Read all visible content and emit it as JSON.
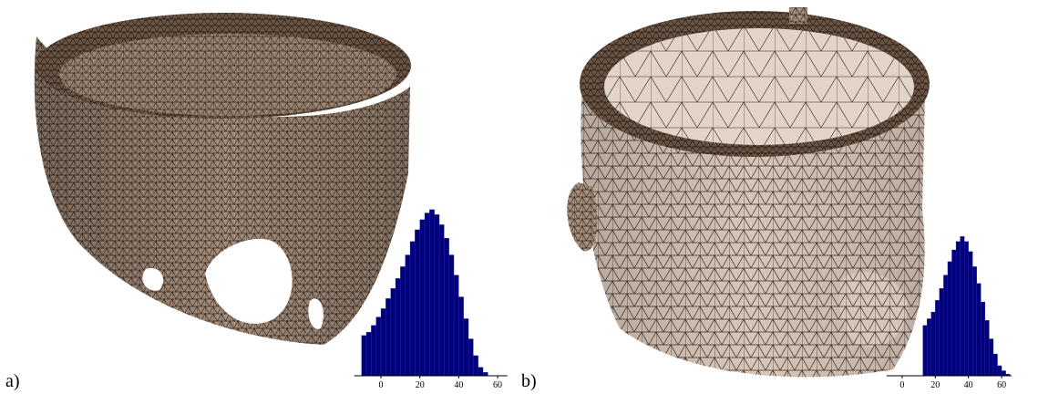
{
  "figure": {
    "labels": [
      "a)",
      "b)"
    ]
  },
  "chart_data": [
    {
      "type": "histogram",
      "color": "#00007f",
      "bins": [
        -10,
        -7.5,
        -5,
        -2.5,
        0,
        2.5,
        5,
        7.5,
        10,
        12.5,
        15,
        17.5,
        20,
        22.5,
        25,
        27.5,
        30,
        32.5,
        35,
        37.5,
        40,
        42.5,
        45,
        47.5,
        50,
        52.5,
        55
      ],
      "counts": [
        24,
        26,
        30,
        35,
        40,
        46,
        52,
        58,
        65,
        72,
        80,
        87,
        93,
        97,
        99,
        96,
        90,
        82,
        72,
        60,
        47,
        34,
        22,
        12,
        5,
        2
      ],
      "xlim": [
        -10,
        65
      ],
      "xticks": [
        0,
        20,
        40,
        60
      ],
      "ylim": [
        0,
        100
      ]
    },
    {
      "type": "histogram",
      "color": "#00007f",
      "bins": [
        12.5,
        15,
        17.5,
        20,
        22.5,
        25,
        27.5,
        30,
        32.5,
        35,
        37.5,
        40,
        42.5,
        45,
        47.5,
        50,
        52.5,
        55,
        57.5,
        60,
        62.5,
        65
      ],
      "counts": [
        30,
        34,
        38,
        45,
        52,
        60,
        68,
        75,
        80,
        83,
        80,
        74,
        65,
        55,
        44,
        33,
        22,
        13,
        6,
        3,
        1
      ],
      "xlim": [
        -5,
        66
      ],
      "xticks": [
        0,
        20,
        40,
        60
      ],
      "ylim": [
        0,
        100
      ]
    }
  ]
}
